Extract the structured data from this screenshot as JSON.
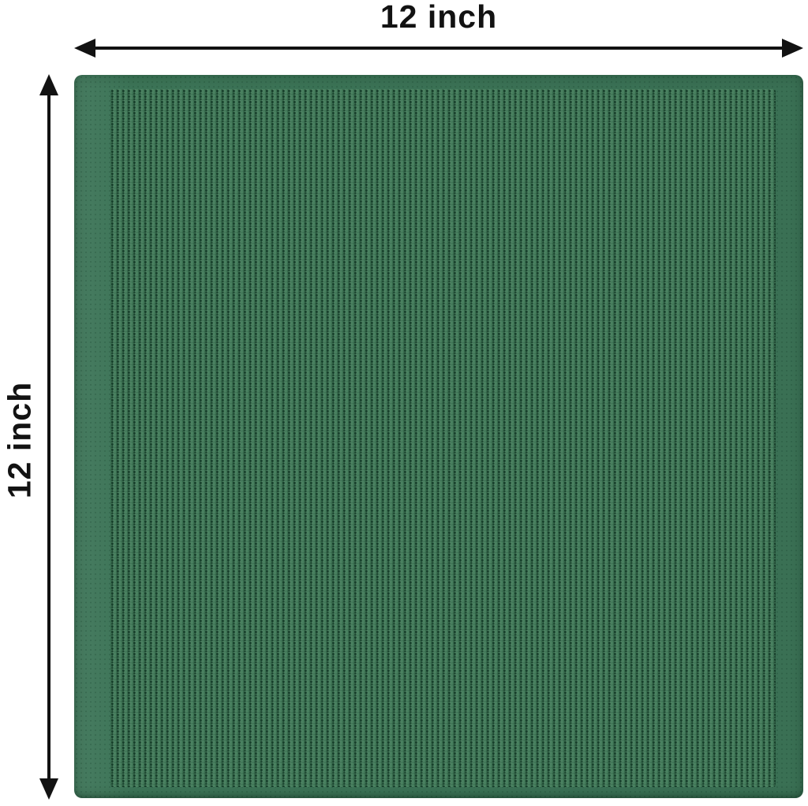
{
  "figure": {
    "width_label": "12 inch",
    "height_label": "12 inch",
    "width_value": "12",
    "height_value": "12",
    "unit": "inch"
  },
  "icons": {
    "arrow_left_icon": "◀",
    "arrow_right_icon": "▶",
    "arrow_up_icon": "▲",
    "arrow_down_icon": "▼"
  },
  "colors": {
    "background": "#ffffff",
    "arrow_and_text": "#121212",
    "fabric_selvage": "#3c7457",
    "fabric_base": "#477f5e",
    "fabric_weave_dot": "#173f2b"
  }
}
